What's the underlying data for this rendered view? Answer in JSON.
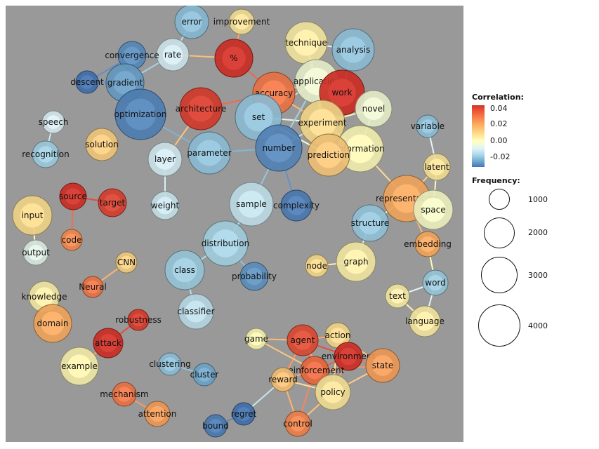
{
  "legend": {
    "correlation_title": "Correlation:",
    "correlation_ticks": [
      "0.04",
      "0.02",
      "0.00",
      "-0.02"
    ],
    "frequency_title": "Frequency:",
    "frequency_ticks": [
      "1000",
      "2000",
      "3000",
      "4000"
    ],
    "frequency_values": [
      1000,
      2000,
      3000,
      4000
    ],
    "color_scale": [
      "#d73027",
      "#f46d43",
      "#fdae61",
      "#fee090",
      "#ffffbf",
      "#e0f3f8",
      "#abd9e9",
      "#74add1",
      "#4575b4"
    ]
  },
  "nodes": [
    {
      "id": "error",
      "label": "error",
      "corr": -0.015
    },
    {
      "id": "improvement",
      "label": "improvement",
      "corr": 0.008
    },
    {
      "id": "rate",
      "label": "rate",
      "corr": -0.004
    },
    {
      "id": "convergence",
      "label": "convergence",
      "corr": -0.025
    },
    {
      "id": "percent",
      "label": "%",
      "corr": 0.04
    },
    {
      "id": "technique",
      "label": "technique",
      "corr": 0.006
    },
    {
      "id": "analysis",
      "label": "analysis",
      "corr": -0.014
    },
    {
      "id": "descent",
      "label": "descent",
      "corr": -0.03
    },
    {
      "id": "gradient",
      "label": "gradient",
      "corr": -0.022
    },
    {
      "id": "application",
      "label": "application",
      "corr": 0.0
    },
    {
      "id": "accuracy",
      "label": "accuracy",
      "corr": 0.028
    },
    {
      "id": "work",
      "label": "work",
      "corr": 0.04
    },
    {
      "id": "architecture",
      "label": "architecture",
      "corr": 0.038
    },
    {
      "id": "optimization",
      "label": "optimization",
      "corr": -0.027
    },
    {
      "id": "set",
      "label": "set",
      "corr": -0.014
    },
    {
      "id": "novel",
      "label": "novel",
      "corr": 0.0
    },
    {
      "id": "speech",
      "label": "speech",
      "corr": -0.003
    },
    {
      "id": "experiment",
      "label": "experiment",
      "corr": 0.01
    },
    {
      "id": "variable",
      "label": "variable",
      "corr": -0.014
    },
    {
      "id": "solution",
      "label": "solution",
      "corr": 0.013
    },
    {
      "id": "recognition",
      "label": "recognition",
      "corr": -0.011
    },
    {
      "id": "layer",
      "label": "layer",
      "corr": -0.004
    },
    {
      "id": "parameter",
      "label": "parameter",
      "corr": -0.014
    },
    {
      "id": "number",
      "label": "number",
      "corr": -0.026
    },
    {
      "id": "information",
      "label": "information",
      "corr": 0.003
    },
    {
      "id": "prediction",
      "label": "prediction",
      "corr": 0.014
    },
    {
      "id": "latent",
      "label": "latent",
      "corr": 0.008
    },
    {
      "id": "source",
      "label": "source",
      "corr": 0.04
    },
    {
      "id": "target",
      "label": "target",
      "corr": 0.037
    },
    {
      "id": "input",
      "label": "input",
      "corr": 0.01
    },
    {
      "id": "weight",
      "label": "weight",
      "corr": -0.005
    },
    {
      "id": "sample",
      "label": "sample",
      "corr": -0.006
    },
    {
      "id": "complexity",
      "label": "complexity",
      "corr": -0.028
    },
    {
      "id": "representation",
      "label": "representation",
      "corr": 0.02
    },
    {
      "id": "space",
      "label": "space",
      "corr": 0.001
    },
    {
      "id": "structure",
      "label": "structure",
      "corr": -0.013
    },
    {
      "id": "code",
      "label": "code",
      "corr": 0.025
    },
    {
      "id": "output",
      "label": "output",
      "corr": -0.002
    },
    {
      "id": "distribution",
      "label": "distribution",
      "corr": -0.01
    },
    {
      "id": "embedding",
      "label": "embedding",
      "corr": 0.02
    },
    {
      "id": "cnn",
      "label": "CNN",
      "corr": 0.012
    },
    {
      "id": "class",
      "label": "class",
      "corr": -0.012
    },
    {
      "id": "node",
      "label": "node",
      "corr": 0.01
    },
    {
      "id": "graph",
      "label": "graph",
      "corr": 0.005
    },
    {
      "id": "probability",
      "label": "probability",
      "corr": -0.024
    },
    {
      "id": "neural",
      "label": "Neural",
      "corr": 0.028
    },
    {
      "id": "word",
      "label": "word",
      "corr": -0.012
    },
    {
      "id": "knowledge",
      "label": "knowledge",
      "corr": 0.005
    },
    {
      "id": "text",
      "label": "text",
      "corr": 0.005
    },
    {
      "id": "classifier",
      "label": "classifier",
      "corr": -0.007
    },
    {
      "id": "domain",
      "label": "domain",
      "corr": 0.02
    },
    {
      "id": "language",
      "label": "language",
      "corr": 0.006
    },
    {
      "id": "robustness",
      "label": "robustness",
      "corr": 0.038
    },
    {
      "id": "attack",
      "label": "attack",
      "corr": 0.04
    },
    {
      "id": "game",
      "label": "game",
      "corr": 0.003
    },
    {
      "id": "agent",
      "label": "agent",
      "corr": 0.035
    },
    {
      "id": "action",
      "label": "action",
      "corr": 0.01
    },
    {
      "id": "environment",
      "label": "environment",
      "corr": 0.04
    },
    {
      "id": "state",
      "label": "state",
      "corr": 0.022
    },
    {
      "id": "example",
      "label": "example",
      "corr": 0.004
    },
    {
      "id": "clustering",
      "label": "clustering",
      "corr": -0.014
    },
    {
      "id": "reinforcement",
      "label": "reinforcement",
      "corr": 0.03
    },
    {
      "id": "cluster",
      "label": "cluster",
      "corr": -0.02
    },
    {
      "id": "reward",
      "label": "reward",
      "corr": 0.015
    },
    {
      "id": "policy",
      "label": "policy",
      "corr": 0.008
    },
    {
      "id": "mechanism",
      "label": "mechanism",
      "corr": 0.028
    },
    {
      "id": "attention",
      "label": "attention",
      "corr": 0.022
    },
    {
      "id": "regret",
      "label": "regret",
      "corr": -0.03
    },
    {
      "id": "control",
      "label": "control",
      "corr": 0.026
    },
    {
      "id": "bound",
      "label": "bound",
      "corr": -0.028
    }
  ],
  "edges": [
    [
      "rate",
      "error"
    ],
    [
      "rate",
      "percent"
    ],
    [
      "rate",
      "convergence"
    ],
    [
      "rate",
      "gradient"
    ],
    [
      "percent",
      "improvement"
    ],
    [
      "percent",
      "accuracy"
    ],
    [
      "descent",
      "gradient"
    ],
    [
      "descent",
      "convergence"
    ],
    [
      "gradient",
      "optimization"
    ],
    [
      "convergence",
      "optimization"
    ],
    [
      "optimization",
      "parameter"
    ],
    [
      "architecture",
      "layer"
    ],
    [
      "architecture",
      "accuracy"
    ],
    [
      "layer",
      "weight"
    ],
    [
      "accuracy",
      "set"
    ],
    [
      "accuracy",
      "application"
    ],
    [
      "accuracy",
      "experiment"
    ],
    [
      "accuracy",
      "work"
    ],
    [
      "technique",
      "application"
    ],
    [
      "technique",
      "analysis"
    ],
    [
      "technique",
      "experiment"
    ],
    [
      "application",
      "work"
    ],
    [
      "application",
      "experiment"
    ],
    [
      "analysis",
      "work"
    ],
    [
      "work",
      "novel"
    ],
    [
      "work",
      "experiment"
    ],
    [
      "set",
      "number"
    ],
    [
      "set",
      "experiment"
    ],
    [
      "set",
      "prediction"
    ],
    [
      "set",
      "application"
    ],
    [
      "experiment",
      "prediction"
    ],
    [
      "experiment",
      "information"
    ],
    [
      "experiment",
      "novel"
    ],
    [
      "number",
      "parameter"
    ],
    [
      "number",
      "sample"
    ],
    [
      "number",
      "complexity"
    ],
    [
      "number",
      "experiment"
    ],
    [
      "number",
      "application"
    ],
    [
      "information",
      "novel"
    ],
    [
      "information",
      "representation"
    ],
    [
      "information",
      "prediction"
    ],
    [
      "speech",
      "recognition"
    ],
    [
      "source",
      "target"
    ],
    [
      "source",
      "code"
    ],
    [
      "input",
      "output"
    ],
    [
      "sample",
      "distribution"
    ],
    [
      "distribution",
      "class"
    ],
    [
      "distribution",
      "probability"
    ],
    [
      "class",
      "classifier"
    ],
    [
      "representation",
      "space"
    ],
    [
      "representation",
      "latent"
    ],
    [
      "representation",
      "structure"
    ],
    [
      "representation",
      "embedding"
    ],
    [
      "variable",
      "latent"
    ],
    [
      "latent",
      "space"
    ],
    [
      "structure",
      "graph"
    ],
    [
      "graph",
      "node"
    ],
    [
      "embedding",
      "word"
    ],
    [
      "word",
      "text"
    ],
    [
      "word",
      "language"
    ],
    [
      "text",
      "language"
    ],
    [
      "cnn",
      "neural"
    ],
    [
      "knowledge",
      "domain"
    ],
    [
      "robustness",
      "attack"
    ],
    [
      "attack",
      "example"
    ],
    [
      "clustering",
      "cluster"
    ],
    [
      "mechanism",
      "attention"
    ],
    [
      "regret",
      "bound"
    ],
    [
      "regret",
      "reward"
    ],
    [
      "game",
      "agent"
    ],
    [
      "agent",
      "action"
    ],
    [
      "agent",
      "environment"
    ],
    [
      "agent",
      "reinforcement"
    ],
    [
      "agent",
      "policy"
    ],
    [
      "agent",
      "reward"
    ],
    [
      "action",
      "environment"
    ],
    [
      "action",
      "state"
    ],
    [
      "action",
      "policy"
    ],
    [
      "environment",
      "state"
    ],
    [
      "environment",
      "reinforcement"
    ],
    [
      "environment",
      "policy"
    ],
    [
      "state",
      "policy"
    ],
    [
      "state",
      "reinforcement"
    ],
    [
      "reinforcement",
      "reward"
    ],
    [
      "reinforcement",
      "policy"
    ],
    [
      "reinforcement",
      "control"
    ],
    [
      "reward",
      "policy"
    ],
    [
      "reward",
      "control"
    ],
    [
      "policy",
      "control"
    ],
    [
      "game",
      "reinforcement"
    ]
  ]
}
